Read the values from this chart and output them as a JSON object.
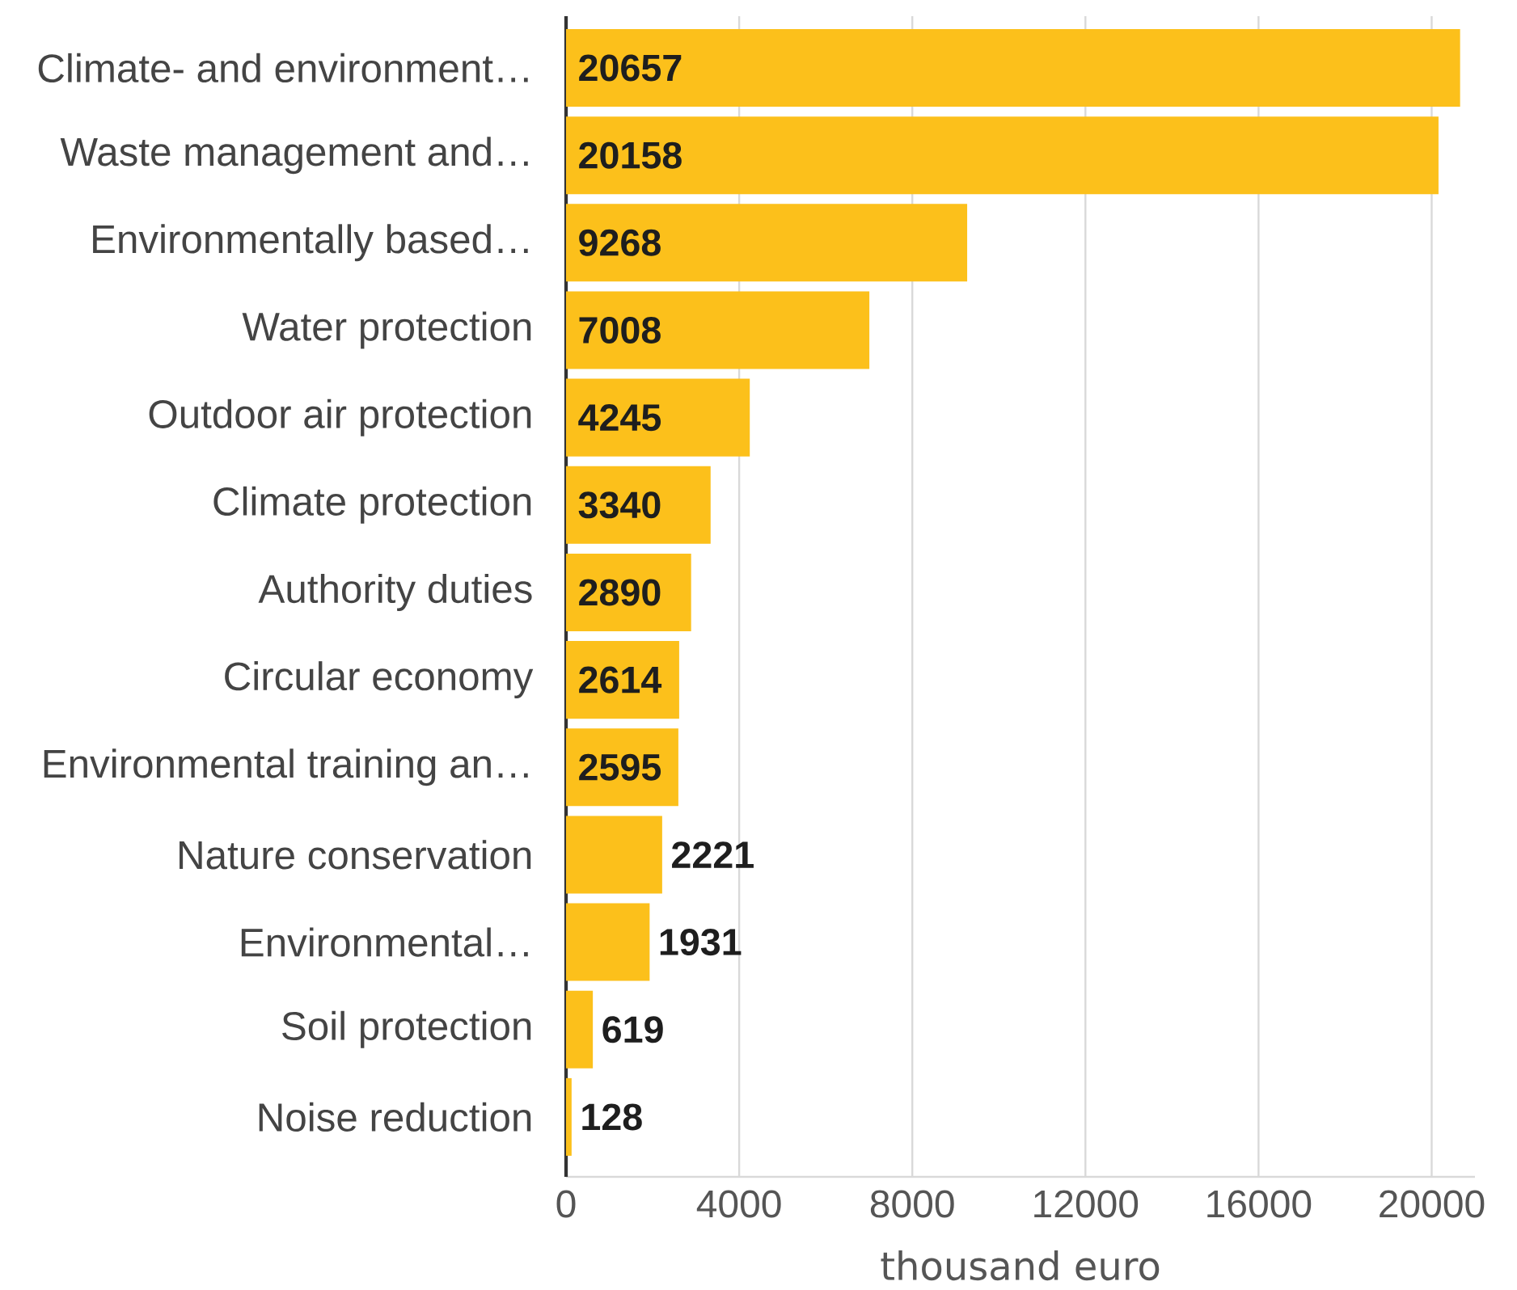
{
  "chart_data": {
    "type": "bar",
    "orientation": "horizontal",
    "categories": [
      "Climate- and environment…",
      "Waste management and…",
      "Environmentally based…",
      "Water protection",
      "Outdoor air protection",
      "Climate protection",
      "Authority duties",
      "Circular economy",
      "Environmental training an…",
      "Nature conservation",
      "Environmental…",
      "Soil protection",
      "Noise reduction"
    ],
    "values": [
      20657,
      20158,
      9268,
      7008,
      4245,
      3340,
      2890,
      2614,
      2595,
      2221,
      1931,
      619,
      128
    ],
    "color": "#fcc01b",
    "xlabel": "thousand euro",
    "xlim": [
      0,
      21000
    ],
    "xticks": [
      0,
      4000,
      8000,
      12000,
      16000,
      20000
    ],
    "grid": "x",
    "data_labels": true
  }
}
